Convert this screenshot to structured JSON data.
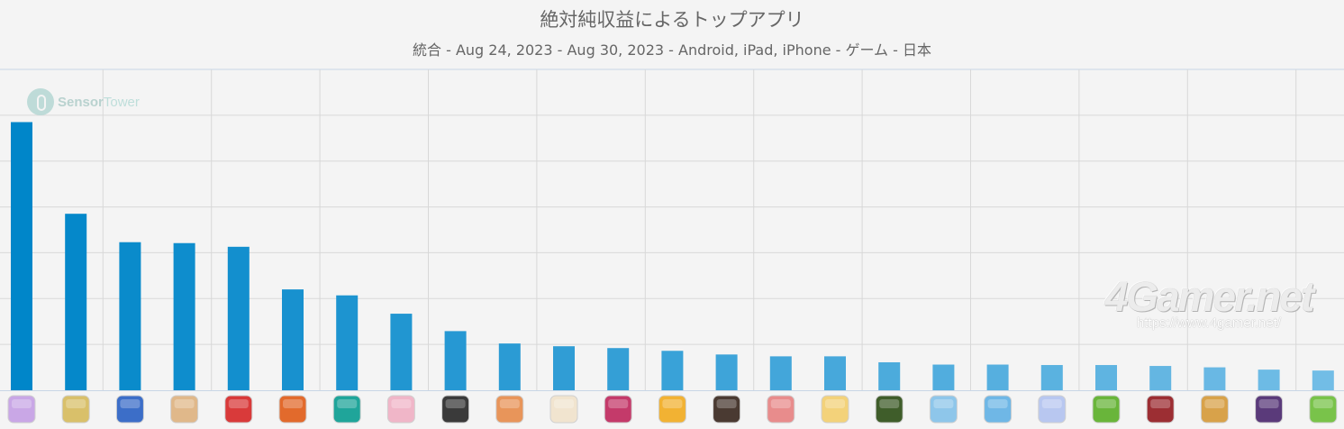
{
  "chart_data": {
    "type": "bar",
    "title": "絶対純収益によるトップアプリ",
    "subtitle": "統合 - Aug 24, 2023 - Aug 30, 2023 - Android, iPad, iPhone - ゲーム - 日本",
    "categories": [
      "app-1",
      "app-2",
      "app-3",
      "app-4",
      "app-5",
      "app-6",
      "app-7",
      "app-8",
      "app-9",
      "app-10",
      "app-11",
      "app-12",
      "app-13",
      "app-14",
      "app-15",
      "app-16",
      "app-17",
      "app-18",
      "app-19",
      "app-20",
      "app-21",
      "app-22",
      "app-23",
      "app-24",
      "app-25"
    ],
    "values": [
      58.5,
      38.5,
      32.3,
      32.1,
      31.3,
      22.0,
      20.7,
      16.7,
      12.9,
      10.2,
      9.6,
      9.2,
      8.6,
      7.8,
      7.4,
      7.4,
      6.1,
      5.6,
      5.6,
      5.5,
      5.5,
      5.3,
      5.0,
      4.5,
      4.3
    ],
    "ylim": [
      0,
      70
    ],
    "grid": true,
    "colors": {
      "start": "#0086c9",
      "end": "#72bde6",
      "grid": "#d8d8d8",
      "axis": "#c8d6e6"
    },
    "icons": [
      "#c9a7e6",
      "#d9c06a",
      "#3c6ec8",
      "#e0b88a",
      "#d93a3a",
      "#e26a2c",
      "#1fa59a",
      "#f0b6c8",
      "#3a3a3a",
      "#e8955a",
      "#f1e4cf",
      "#c43a6a",
      "#f2b233",
      "#4a3a32",
      "#e88c8c",
      "#f3d27a",
      "#3f5d2a",
      "#8ec6ea",
      "#6fb7e6",
      "#b8c7f0",
      "#69b53a",
      "#9c2e33",
      "#d8a24a",
      "#5a3a7a",
      "#79c34a"
    ]
  }
}
